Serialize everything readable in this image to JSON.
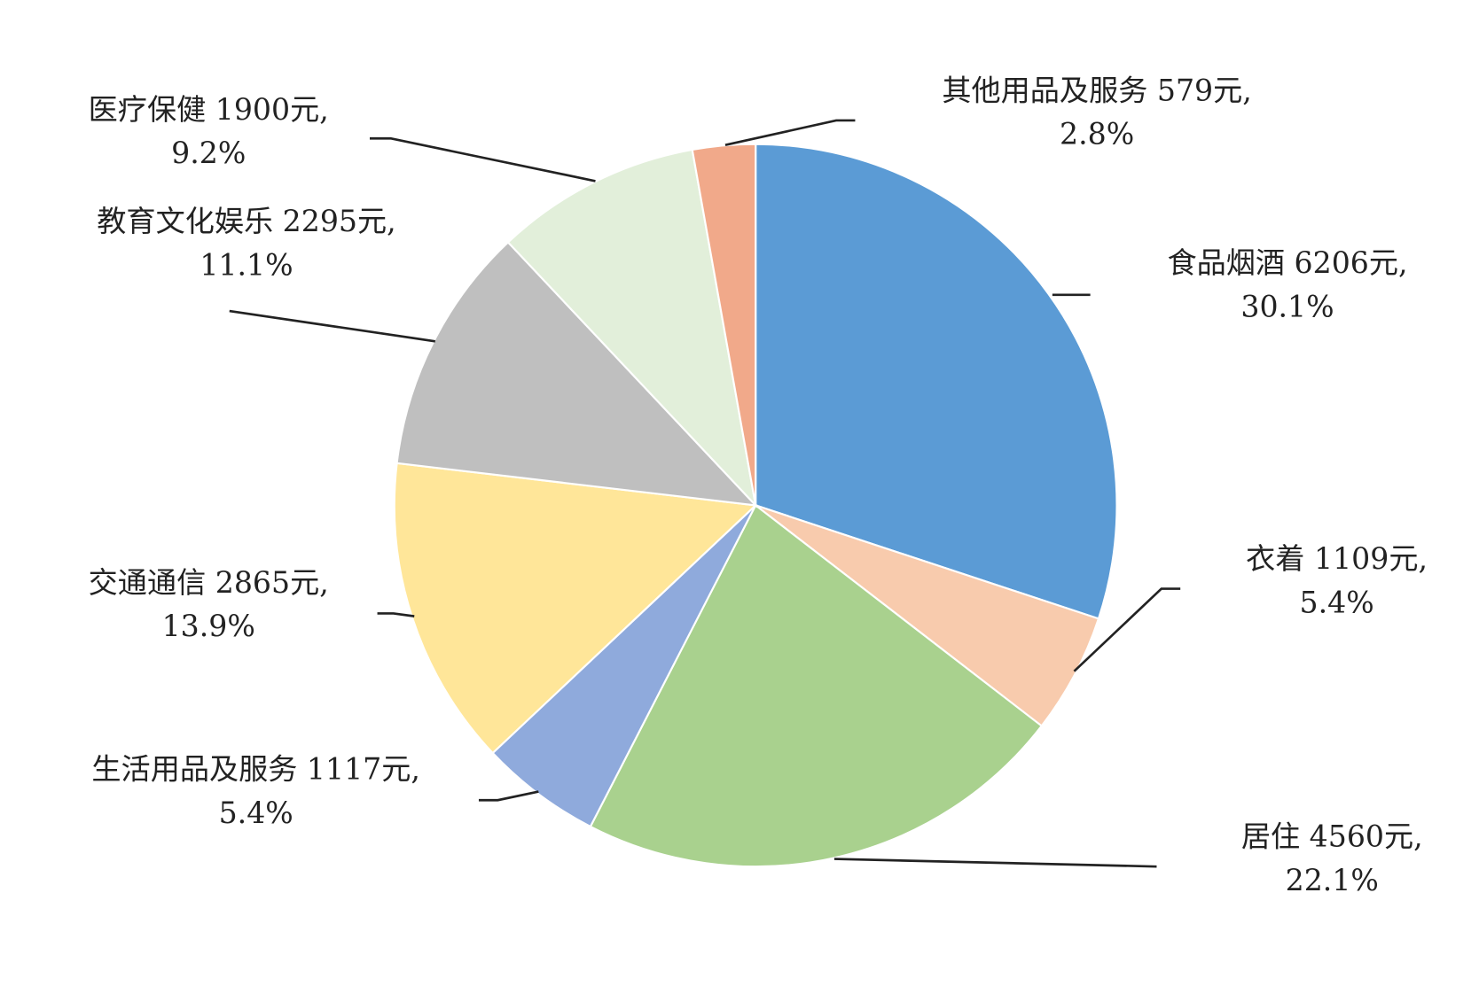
{
  "chart_data": {
    "type": "pie",
    "unit": "元",
    "start": "top",
    "direction": "clockwise",
    "slices": [
      {
        "name": "食品烟酒",
        "value": 6206,
        "percent": "30.1%",
        "color": "#5B9BD5",
        "line1": "食品烟酒 6206元,",
        "line2": "30.1%"
      },
      {
        "name": "衣着",
        "value": 1109,
        "percent": "5.4%",
        "color": "#F8CBAD",
        "line1": "衣着 1109元,",
        "line2": "5.4%"
      },
      {
        "name": "居住",
        "value": 4560,
        "percent": "22.1%",
        "color": "#A9D18E",
        "line1": "居住 4560元,",
        "line2": "22.1%"
      },
      {
        "name": "生活用品及服务",
        "value": 1117,
        "percent": "5.4%",
        "color": "#8FAADC",
        "line1": "生活用品及服务 1117元,",
        "line2": "5.4%"
      },
      {
        "name": "交通通信",
        "value": 2865,
        "percent": "13.9%",
        "color": "#FFE699",
        "line1": "交通通信 2865元,",
        "line2": "13.9%"
      },
      {
        "name": "教育文化娱乐",
        "value": 2295,
        "percent": "11.1%",
        "color": "#BFBFBF",
        "line1": "教育文化娱乐 2295元,",
        "line2": "11.1%"
      },
      {
        "name": "医疗保健",
        "value": 1900,
        "percent": "9.2%",
        "color": "#E2EFDA",
        "line1": "医疗保健 1900元,",
        "line2": "9.2%"
      },
      {
        "name": "其他用品及服务",
        "value": 579,
        "percent": "2.8%",
        "color": "#F1A98A",
        "line1": "其他用品及服务 579元,",
        "line2": "2.8%"
      }
    ]
  }
}
